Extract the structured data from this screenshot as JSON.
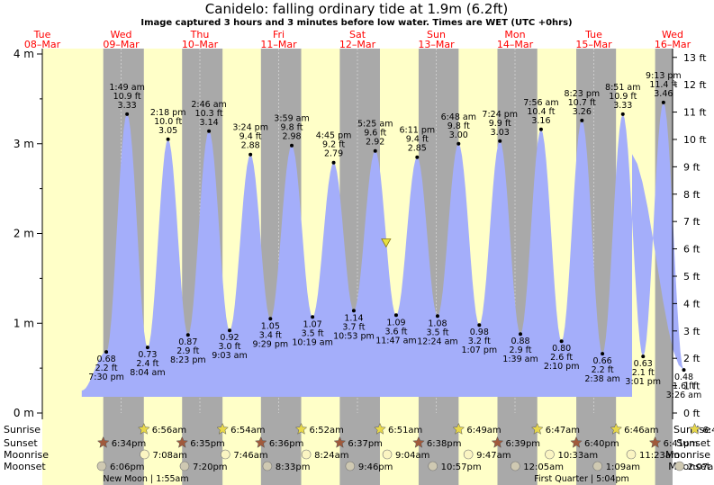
{
  "chart_data": {
    "type": "area",
    "title": "Canidelo: falling  ordinary tide at 1.9m (6.2ft)",
    "subtitle": "Image captured 3 hours and 3 minutes before low water. Times are WET (UTC +0hrs)",
    "days": [
      {
        "name": "Tue",
        "date": "08–Mar"
      },
      {
        "name": "Wed",
        "date": "09–Mar"
      },
      {
        "name": "Thu",
        "date": "10–Mar"
      },
      {
        "name": "Fri",
        "date": "11–Mar"
      },
      {
        "name": "Sat",
        "date": "12–Mar"
      },
      {
        "name": "Sun",
        "date": "13–Mar"
      },
      {
        "name": "Mon",
        "date": "14–Mar"
      },
      {
        "name": "Tue",
        "date": "15–Mar"
      },
      {
        "name": "Wed",
        "date": "16–Mar"
      }
    ],
    "x_start": "2022-03-08T00:00",
    "x_end": "2022-03-16T00:00",
    "ylim_m": [
      0,
      4
    ],
    "y_ticks_m": [
      "0 m",
      "1 m",
      "2 m",
      "3 m",
      "4 m"
    ],
    "y_ticks_ft": [
      "0 ft",
      "1 ft",
      "2 ft",
      "3 ft",
      "4 ft",
      "5 ft",
      "6 ft",
      "7 ft",
      "8 ft",
      "9 ft",
      "10 ft",
      "11 ft",
      "12 ft",
      "13 ft"
    ],
    "tides": [
      {
        "type": "low",
        "datetime": "2022-03-08T19:30",
        "height_m": 0.68,
        "label_ft": "2.2 ft",
        "label_time": "7:30 pm",
        "label_m": "0.68"
      },
      {
        "type": "high",
        "datetime": "2022-03-09T01:49",
        "height_m": 3.33,
        "label_ft": "10.9 ft",
        "label_time": "1:49 am",
        "label_m": "3.33"
      },
      {
        "type": "low",
        "datetime": "2022-03-09T08:04",
        "height_m": 0.73,
        "label_ft": "2.4 ft",
        "label_time": "8:04 am",
        "label_m": "0.73"
      },
      {
        "type": "high",
        "datetime": "2022-03-09T14:18",
        "height_m": 3.05,
        "label_ft": "10.0 ft",
        "label_time": "2:18 pm",
        "label_m": "3.05"
      },
      {
        "type": "low",
        "datetime": "2022-03-09T20:23",
        "height_m": 0.87,
        "label_ft": "2.9 ft",
        "label_time": "8:23 pm",
        "label_m": "0.87"
      },
      {
        "type": "high",
        "datetime": "2022-03-10T02:46",
        "height_m": 3.14,
        "label_ft": "10.3 ft",
        "label_time": "2:46 am",
        "label_m": "3.14"
      },
      {
        "type": "low",
        "datetime": "2022-03-10T09:03",
        "height_m": 0.92,
        "label_ft": "3.0 ft",
        "label_time": "9:03 am",
        "label_m": "0.92"
      },
      {
        "type": "high",
        "datetime": "2022-03-10T15:24",
        "height_m": 2.88,
        "label_ft": "9.4 ft",
        "label_time": "3:24 pm",
        "label_m": "2.88"
      },
      {
        "type": "low",
        "datetime": "2022-03-10T21:29",
        "height_m": 1.05,
        "label_ft": "3.4 ft",
        "label_time": "9:29 pm",
        "label_m": "1.05"
      },
      {
        "type": "high",
        "datetime": "2022-03-11T03:59",
        "height_m": 2.98,
        "label_ft": "9.8 ft",
        "label_time": "3:59 am",
        "label_m": "2.98"
      },
      {
        "type": "low",
        "datetime": "2022-03-11T10:19",
        "height_m": 1.07,
        "label_ft": "3.5 ft",
        "label_time": "10:19 am",
        "label_m": "1.07"
      },
      {
        "type": "high",
        "datetime": "2022-03-11T16:45",
        "height_m": 2.79,
        "label_ft": "9.2 ft",
        "label_time": "4:45 pm",
        "label_m": "2.79"
      },
      {
        "type": "low",
        "datetime": "2022-03-11T22:53",
        "height_m": 1.14,
        "label_ft": "3.7 ft",
        "label_time": "10:53 pm",
        "label_m": "1.14"
      },
      {
        "type": "high",
        "datetime": "2022-03-12T05:25",
        "height_m": 2.92,
        "label_ft": "9.6 ft",
        "label_time": "5:25 am",
        "label_m": "2.92"
      },
      {
        "type": "low",
        "datetime": "2022-03-12T11:47",
        "height_m": 1.09,
        "label_ft": "3.6 ft",
        "label_time": "11:47 am",
        "label_m": "1.09"
      },
      {
        "type": "high",
        "datetime": "2022-03-12T18:11",
        "height_m": 2.85,
        "label_ft": "9.4 ft",
        "label_time": "6:11 pm",
        "label_m": "2.85"
      },
      {
        "type": "low",
        "datetime": "2022-03-13T00:24",
        "height_m": 1.08,
        "label_ft": "3.5 ft",
        "label_time": "12:24 am",
        "label_m": "1.08"
      },
      {
        "type": "high",
        "datetime": "2022-03-13T06:48",
        "height_m": 3.0,
        "label_ft": "9.8 ft",
        "label_time": "6:48 am",
        "label_m": "3.00"
      },
      {
        "type": "low",
        "datetime": "2022-03-13T13:07",
        "height_m": 0.98,
        "label_ft": "3.2 ft",
        "label_time": "1:07 pm",
        "label_m": "0.98"
      },
      {
        "type": "high",
        "datetime": "2022-03-13T19:24",
        "height_m": 3.03,
        "label_ft": "9.9 ft",
        "label_time": "7:24 pm",
        "label_m": "3.03"
      },
      {
        "type": "low",
        "datetime": "2022-03-14T01:39",
        "height_m": 0.88,
        "label_ft": "2.9 ft",
        "label_time": "1:39 am",
        "label_m": "0.88"
      },
      {
        "type": "high",
        "datetime": "2022-03-14T07:56",
        "height_m": 3.16,
        "label_ft": "10.4 ft",
        "label_time": "7:56 am",
        "label_m": "3.16"
      },
      {
        "type": "low",
        "datetime": "2022-03-14T14:10",
        "height_m": 0.8,
        "label_ft": "2.6 ft",
        "label_time": "2:10 pm",
        "label_m": "0.80"
      },
      {
        "type": "high",
        "datetime": "2022-03-14T20:23",
        "height_m": 3.26,
        "label_ft": "10.7 ft",
        "label_time": "8:23 pm",
        "label_m": "3.26"
      },
      {
        "type": "low",
        "datetime": "2022-03-15T02:38",
        "height_m": 0.66,
        "label_ft": "2.2 ft",
        "label_time": "2:38 am",
        "label_m": "0.66"
      },
      {
        "type": "high",
        "datetime": "2022-03-15T08:51",
        "height_m": 3.33,
        "label_ft": "10.9 ft",
        "label_time": "8:51 am",
        "label_m": "3.33"
      },
      {
        "type": "low",
        "datetime": "2022-03-15T15:01",
        "height_m": 0.63,
        "label_ft": "2.1 ft",
        "label_time": "3:01 pm",
        "label_m": "0.63"
      },
      {
        "type": "high",
        "datetime": "2022-03-15T21:13",
        "height_m": 3.46,
        "label_ft": "11.4 ft",
        "label_time": "9:13 pm",
        "label_m": "3.46"
      },
      {
        "type": "low",
        "datetime": "2022-03-16T03:26",
        "height_m": 0.48,
        "label_ft": "1.6 ft",
        "label_time": "3:26 am",
        "label_m": "0.48"
      }
    ],
    "data_start": "2022-03-08T12:00",
    "data_start_height_m": 0.25,
    "current": {
      "datetime": "2022-03-12T08:44",
      "height_m": 1.9
    },
    "rows": {
      "sunrise": {
        "label": "Sunrise",
        "color": "#e8d84a",
        "times": [
          "2022-03-09T06:56",
          "2022-03-10T06:54",
          "2022-03-11T06:52",
          "2022-03-12T06:51",
          "2022-03-13T06:49",
          "2022-03-14T06:47",
          "2022-03-15T06:46",
          "2022-03-16T06:44"
        ],
        "labels": [
          "6:56am",
          "6:54am",
          "6:52am",
          "6:51am",
          "6:49am",
          "6:47am",
          "6:46am",
          "6:44am"
        ]
      },
      "sunset": {
        "label": "Sunset",
        "color": "#a05a3c",
        "times": [
          "2022-03-08T18:34",
          "2022-03-09T18:35",
          "2022-03-10T18:36",
          "2022-03-11T18:37",
          "2022-03-12T18:38",
          "2022-03-13T18:39",
          "2022-03-14T18:40",
          "2022-03-15T18:41"
        ],
        "labels": [
          "6:34pm",
          "6:35pm",
          "6:36pm",
          "6:37pm",
          "6:38pm",
          "6:39pm",
          "6:40pm",
          "6:41pm"
        ]
      },
      "moonrise": {
        "label": "Moonrise",
        "color": "#fbf5c2",
        "times": [
          "2022-03-09T07:08",
          "2022-03-10T07:46",
          "2022-03-11T08:24",
          "2022-03-12T09:04",
          "2022-03-13T09:47",
          "2022-03-14T10:33",
          "2022-03-15T11:23"
        ],
        "labels": [
          "7:08am",
          "7:46am",
          "8:24am",
          "9:04am",
          "9:47am",
          "10:33am",
          "11:23am"
        ]
      },
      "moonset": {
        "label": "Moonset",
        "color": "#cfc9b2",
        "times": [
          "2022-03-08T18:06",
          "2022-03-09T19:20",
          "2022-03-10T20:33",
          "2022-03-11T21:46",
          "2022-03-12T22:57",
          "2022-03-14T00:05",
          "2022-03-15T01:09",
          "2022-03-16T02:07"
        ],
        "labels": [
          "6:06pm",
          "7:20pm",
          "8:33pm",
          "9:46pm",
          "10:57pm",
          "12:05am",
          "1:09am",
          "2:07am"
        ]
      }
    },
    "moon_phases": [
      "New Moon | 1:55am",
      "First Quarter | 5:04pm"
    ],
    "night_color": "#a9a9a9",
    "day_color": "#ffffc8",
    "tide_color": "#a4aefa",
    "title_color": "#000000",
    "date_color": "#ff0000"
  }
}
